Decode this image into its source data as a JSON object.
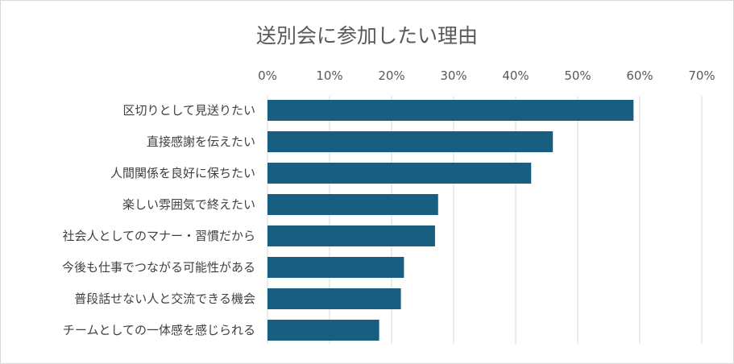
{
  "chart_data": {
    "type": "bar",
    "orientation": "horizontal",
    "title": "送別会に参加したい理由",
    "categories": [
      "区切りとして見送りたい",
      "直接感謝を伝えたい",
      "人間関係を良好に保ちたい",
      "楽しい雰囲気で終えたい",
      "社会人としてのマナー・習慣だから",
      "今後も仕事でつながる可能性がある",
      "普段話せない人と交流できる機会",
      "チームとしての一体感を感じられる"
    ],
    "values": [
      59,
      46,
      42.5,
      27.5,
      27,
      22,
      21.5,
      18
    ],
    "xlim": [
      0,
      70
    ],
    "ticks": [
      "0%",
      "10%",
      "20%",
      "30%",
      "40%",
      "50%",
      "60%",
      "70%"
    ],
    "tick_values": [
      0,
      10,
      20,
      30,
      40,
      50,
      60,
      70
    ],
    "axis_position": "top",
    "grid": true,
    "bar_color": "#175e81",
    "grid_color": "#d9d9d9"
  }
}
